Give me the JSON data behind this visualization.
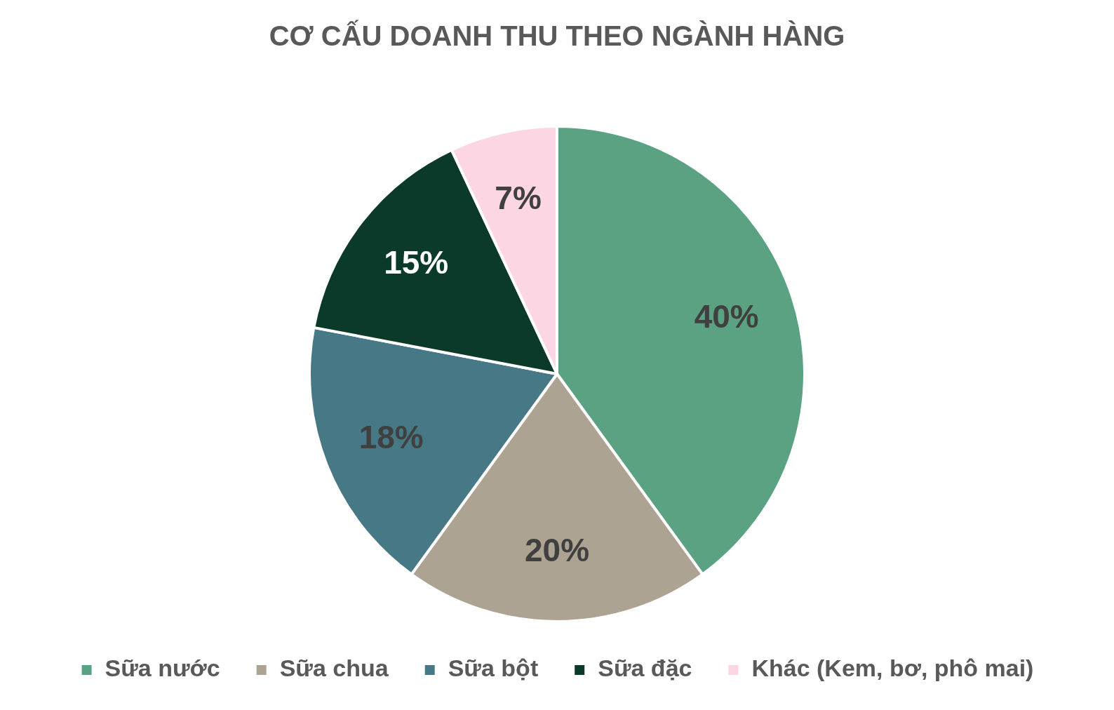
{
  "chart_data": {
    "type": "pie",
    "title": "CƠ CẤU DOANH THU THEO NGÀNH HÀNG",
    "categories": [
      "Sữa nước",
      "Sữa chua",
      "Sữa bột",
      "Sữa đặc",
      "Khác (Kem, bơ, phô mai)"
    ],
    "values": [
      40,
      20,
      18,
      15,
      7
    ],
    "colors": [
      "#5aa282",
      "#ada392",
      "#467885",
      "#0c3a2a",
      "#fdd6e3"
    ],
    "value_labels": [
      "40%",
      "20%",
      "18%",
      "15%",
      "7%"
    ],
    "legend": "bottom"
  }
}
